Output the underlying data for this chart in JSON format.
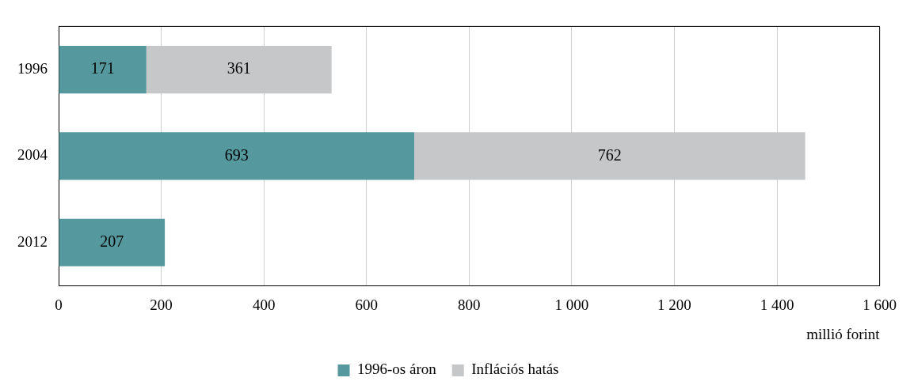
{
  "chart_data": {
    "type": "bar",
    "orientation": "horizontal",
    "stacked": true,
    "categories": [
      "1996",
      "2004",
      "2012"
    ],
    "series": [
      {
        "name": "1996-os áron",
        "color": "#55999e",
        "values": [
          171,
          693,
          207
        ]
      },
      {
        "name": "Inflációs hatás",
        "color": "#c6c7c9",
        "values": [
          361,
          762,
          null
        ]
      }
    ],
    "xlabel": "millió forint",
    "xlim": [
      0,
      1600
    ],
    "xticks": [
      0,
      200,
      400,
      600,
      800,
      {
        "value": 1000,
        "label": "1 000"
      },
      {
        "value": 1200,
        "label": "1 200"
      },
      {
        "value": 1400,
        "label": "1 400"
      },
      {
        "value": 1600,
        "label": "1 600"
      }
    ],
    "grid": "x",
    "legend": "bottom",
    "data_labels": true
  }
}
